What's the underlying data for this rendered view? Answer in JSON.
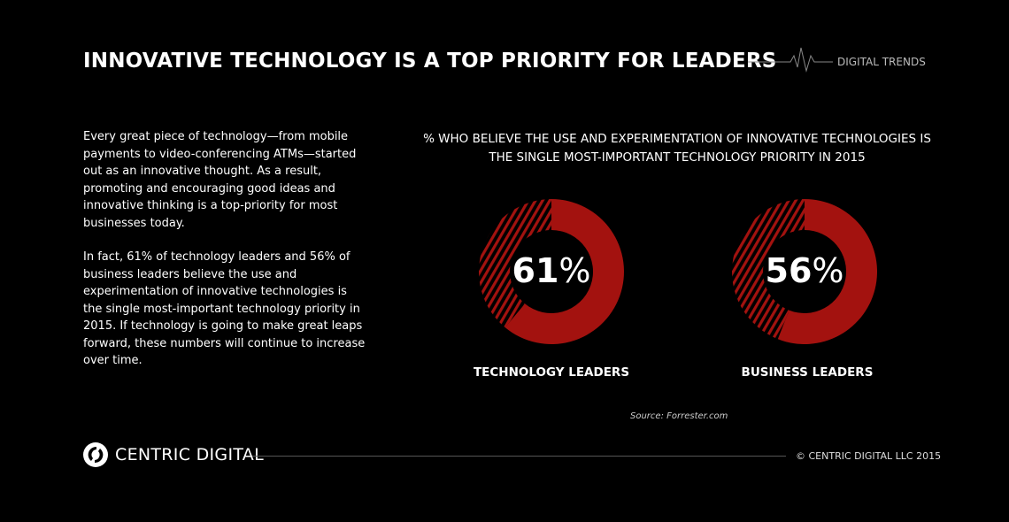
{
  "header": {
    "title": "INNOVATIVE TECHNOLOGY IS A TOP PRIORITY FOR LEADERS",
    "tag": "DIGITAL TRENDS"
  },
  "body": {
    "paragraphs": [
      "Every great piece of technology—from mobile payments to video-conferencing ATMs—started out as an innovative thought. As a result, promoting and encouraging good ideas and innovative thinking is a top-priority for most businesses today.",
      "In fact, 61% of technology leaders and 56% of business leaders believe the use and experimentation of innovative technologies is the single most-important technology priority in 2015. If technology is going to make great leaps forward, these numbers will continue to increase over time."
    ]
  },
  "chart_data": {
    "type": "pie",
    "title": "% WHO BELIEVE THE USE AND EXPERIMENTATION OF INNOVATIVE TECHNOLOGIES IS THE SINGLE MOST-IMPORTANT TECHNOLOGY PRIORITY IN 2015",
    "series": [
      {
        "name": "TECHNOLOGY LEADERS",
        "value": 61,
        "label": "61",
        "unit": "%"
      },
      {
        "name": "BUSINESS LEADERS",
        "value": 56,
        "label": "56",
        "unit": "%"
      }
    ],
    "colors": {
      "filled": "#a3120f",
      "remainder": "hatched #a3120f"
    }
  },
  "source": "Source:  Forrester.com",
  "footer": {
    "brand": "CENTRIC DIGITAL",
    "copyright": "© CENTRIC DIGITAL LLC 2015"
  }
}
